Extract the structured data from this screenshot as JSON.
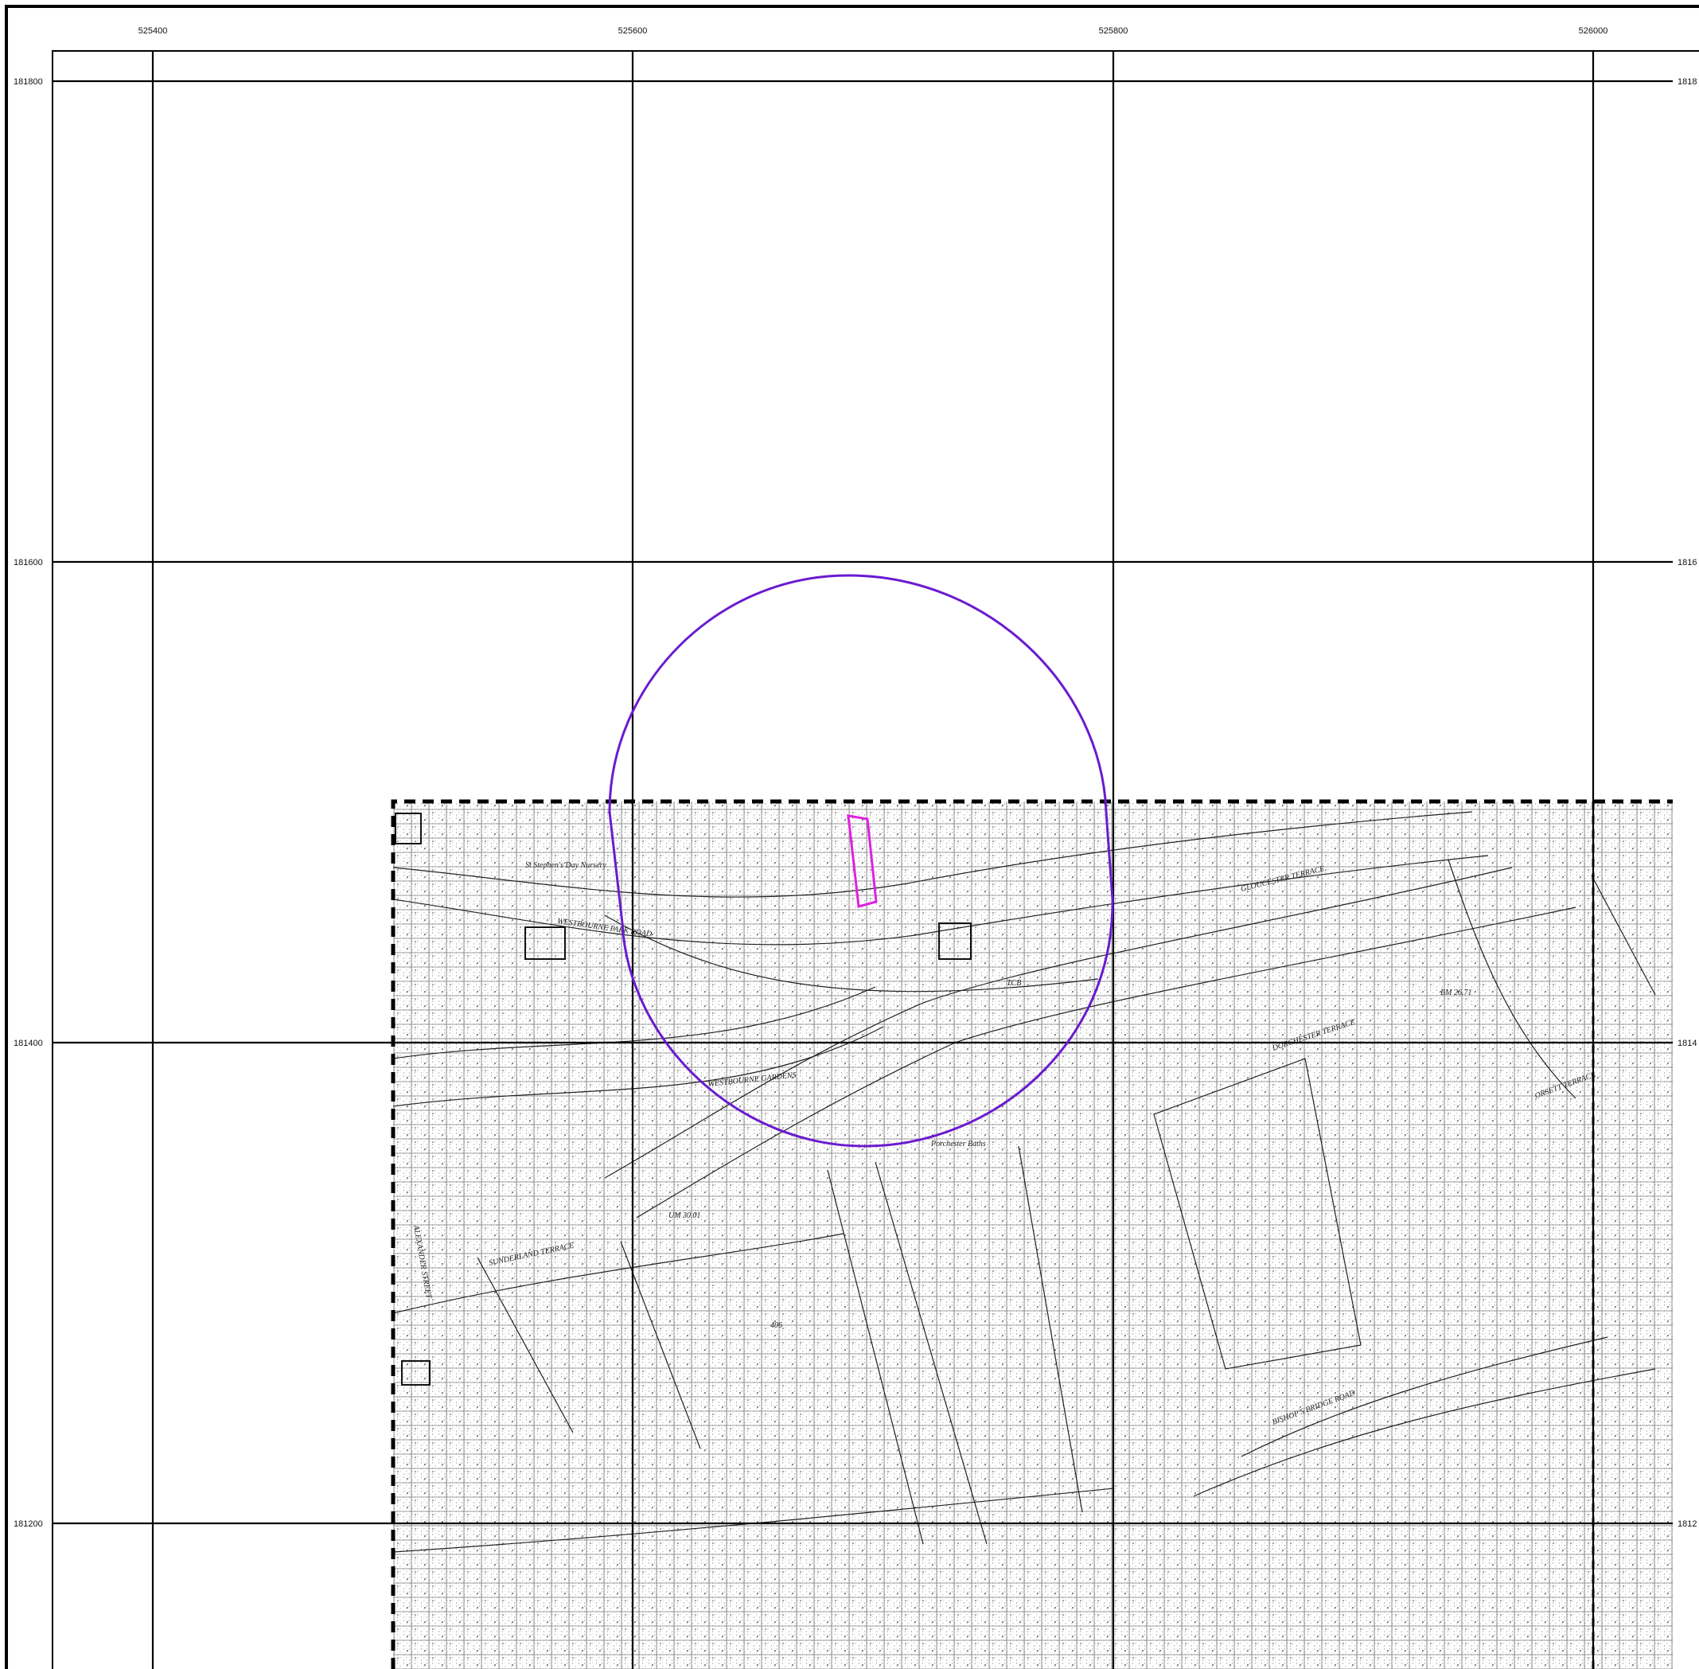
{
  "grid": {
    "eastings": [
      "525400",
      "525600",
      "525800",
      "526000"
    ],
    "northings": [
      "181800",
      "181600",
      "181400",
      "181200"
    ],
    "right_labels": [
      "1818",
      "1816",
      "1814",
      "1812"
    ]
  },
  "street_labels": [
    "St Stephen's Day Nursery",
    "WESTBOURNE PARK ROAD",
    "WESTBOURNE GARDENS",
    "GLOUCESTER TERRACE",
    "DORCHESTER TERRACE",
    "BISHOP'S BRIDGE ROAD",
    "SUNDERLAND TERRACE",
    "ALEXANDER STREET",
    "ORSETT TERRACE",
    "Porchester Baths",
    "UM 30.01",
    "406",
    "BM 26.71",
    "TCB"
  ],
  "colors": {
    "search_buffer": "#6a1bd0",
    "site_boundary": "#e020e0",
    "grid": "#000000",
    "basemap_extent": "#000000"
  },
  "icons": {
    "search_buffer": "circle-buffer-icon",
    "site_boundary": "site-polygon-icon"
  }
}
